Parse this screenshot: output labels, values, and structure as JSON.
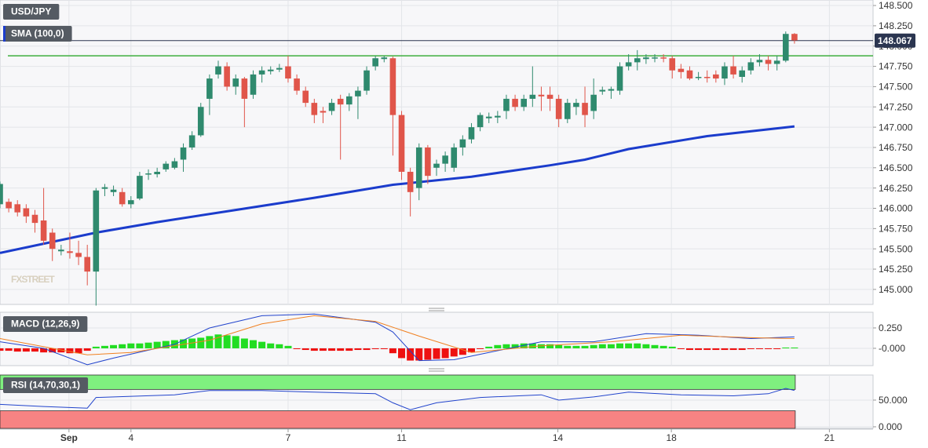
{
  "chart_data": [
    {
      "type": "candlestick",
      "title": "USD/JPY",
      "watermark": "FXSTREET",
      "xlim": [
        0,
        100
      ],
      "xticks": [
        {
          "value": 7.9,
          "label": "Sep"
        },
        {
          "value": 15,
          "label": "4"
        },
        {
          "value": 33,
          "label": "7"
        },
        {
          "value": 46,
          "label": "11"
        },
        {
          "value": 63.9,
          "label": "14"
        },
        {
          "value": 76.9,
          "label": "18"
        },
        {
          "value": 95,
          "label": "21"
        }
      ],
      "ylim": [
        144.815,
        148.568
      ],
      "yticks": [
        {
          "value": 145,
          "label": "145.000"
        },
        {
          "value": 145.25,
          "label": "145.250"
        },
        {
          "value": 145.5,
          "label": "145.500"
        },
        {
          "value": 145.75,
          "label": "145.750"
        },
        {
          "value": 146,
          "label": "146.000"
        },
        {
          "value": 146.25,
          "label": "146.250"
        },
        {
          "value": 146.5,
          "label": "146.500"
        },
        {
          "value": 146.75,
          "label": "146.750"
        },
        {
          "value": 147,
          "label": "147.000"
        },
        {
          "value": 147.25,
          "label": "147.250"
        },
        {
          "value": 147.5,
          "label": "147.500"
        },
        {
          "value": 147.75,
          "label": "147.750"
        },
        {
          "value": 148,
          "label": "148.000"
        },
        {
          "value": 148.25,
          "label": "148.250"
        },
        {
          "value": 148.5,
          "label": "148.500"
        }
      ],
      "up_color": "#2f8a6e",
      "down_color": "#e0554a",
      "open": [
        146.05,
        146.08,
        146.05,
        146.0,
        145.92,
        145.85,
        145.7,
        145.47,
        145.47,
        145.45,
        145.4,
        145.22,
        146.24,
        146.2,
        146.2,
        146.05,
        146.12,
        146.42,
        146.42,
        146.48,
        146.5,
        146.6,
        146.75,
        146.9,
        147.35,
        147.65,
        147.75,
        147.5,
        147.6,
        147.4,
        147.65,
        147.69,
        147.71,
        147.75,
        147.6,
        147.45,
        147.3,
        147.2,
        147.2,
        147.35,
        147.28,
        147.38,
        147.45,
        147.75,
        147.84,
        147.85,
        147.15,
        146.45,
        146.25,
        146.75,
        146.5,
        146.55,
        146.5,
        146.75,
        146.85,
        147.0,
        147.11,
        147.12,
        147.2,
        147.35,
        147.25,
        147.35,
        147.4,
        147.4,
        147.35,
        147.1,
        147.25,
        147.3,
        147.2,
        147.44,
        147.45,
        147.45,
        147.75,
        147.8,
        147.84,
        147.85,
        147.86,
        147.85,
        147.72,
        147.7,
        147.61,
        147.62,
        147.65,
        147.6,
        147.75,
        147.62,
        147.7,
        147.8,
        147.83,
        147.78,
        147.82,
        148.15
      ],
      "high": [
        146.33,
        146.12,
        146.1,
        146.05,
        145.98,
        146.25,
        145.75,
        145.55,
        145.7,
        145.6,
        145.55,
        146.25,
        146.3,
        146.28,
        146.25,
        146.15,
        146.45,
        146.48,
        146.5,
        146.58,
        146.62,
        146.8,
        146.95,
        147.3,
        147.65,
        147.82,
        147.8,
        147.65,
        147.62,
        147.7,
        147.75,
        147.75,
        147.78,
        147.88,
        147.65,
        147.5,
        147.35,
        147.25,
        147.35,
        147.4,
        147.42,
        147.5,
        147.75,
        147.88,
        147.88,
        147.87,
        147.2,
        146.5,
        146.8,
        146.78,
        146.6,
        146.7,
        146.8,
        146.9,
        147.05,
        147.18,
        147.18,
        147.2,
        147.4,
        147.4,
        147.4,
        147.75,
        147.5,
        147.5,
        147.4,
        147.35,
        147.35,
        147.5,
        147.6,
        147.5,
        147.5,
        147.8,
        147.9,
        147.95,
        147.9,
        147.9,
        147.9,
        147.88,
        147.78,
        147.75,
        147.68,
        147.7,
        147.7,
        147.8,
        147.88,
        147.75,
        147.85,
        147.9,
        147.88,
        147.88,
        148.18,
        148.16
      ],
      "low": [
        146.0,
        145.95,
        145.9,
        145.82,
        145.7,
        145.55,
        145.35,
        145.42,
        145.38,
        145.3,
        145.05,
        144.8,
        146.15,
        146.15,
        146.02,
        146.0,
        146.1,
        146.35,
        146.38,
        146.45,
        146.48,
        146.45,
        146.72,
        146.88,
        147.15,
        147.6,
        147.45,
        147.4,
        147.0,
        147.35,
        147.55,
        147.65,
        147.68,
        147.55,
        147.4,
        147.25,
        147.05,
        147.05,
        147.15,
        146.6,
        147.2,
        147.1,
        147.4,
        147.7,
        147.8,
        146.65,
        146.35,
        145.9,
        146.1,
        146.3,
        146.4,
        146.45,
        146.45,
        146.65,
        146.8,
        146.95,
        147.05,
        147.05,
        147.1,
        147.2,
        147.2,
        147.25,
        147.2,
        147.2,
        147.0,
        147.05,
        147.15,
        147.0,
        147.1,
        147.4,
        147.35,
        147.4,
        147.7,
        147.7,
        147.78,
        147.8,
        147.8,
        147.6,
        147.6,
        147.58,
        147.58,
        147.55,
        147.55,
        147.52,
        147.6,
        147.55,
        147.65,
        147.75,
        147.7,
        147.7,
        147.8,
        148.03
      ],
      "close": [
        146.3,
        146.0,
        145.95,
        145.9,
        145.82,
        145.6,
        145.5,
        145.49,
        145.45,
        145.4,
        145.22,
        146.22,
        146.26,
        146.23,
        146.05,
        146.1,
        146.4,
        146.43,
        146.45,
        146.55,
        146.58,
        146.75,
        146.9,
        147.25,
        147.6,
        147.75,
        147.5,
        147.6,
        147.35,
        147.65,
        147.7,
        147.71,
        147.73,
        147.6,
        147.45,
        147.3,
        147.15,
        147.18,
        147.3,
        147.28,
        147.38,
        147.45,
        147.7,
        147.85,
        147.86,
        147.15,
        146.45,
        146.2,
        146.75,
        146.4,
        146.55,
        146.65,
        146.75,
        146.85,
        147.0,
        147.15,
        147.13,
        147.14,
        147.35,
        147.25,
        147.35,
        147.4,
        147.38,
        147.35,
        147.1,
        147.3,
        147.3,
        147.15,
        147.4,
        147.46,
        147.47,
        147.75,
        147.8,
        147.85,
        147.86,
        147.86,
        147.85,
        147.7,
        147.68,
        147.6,
        147.62,
        147.61,
        147.6,
        147.75,
        147.65,
        147.7,
        147.8,
        147.83,
        147.78,
        147.82,
        148.15,
        148.07
      ],
      "overlays": [
        {
          "name": "SMA (100,0)",
          "color": "#1b3ccc",
          "x": [
            0,
            11,
            18,
            27,
            36,
            45,
            54,
            63,
            67,
            72,
            81,
            91
          ],
          "values": [
            145.45,
            145.7,
            145.83,
            145.98,
            146.13,
            146.29,
            146.39,
            146.53,
            146.6,
            146.73,
            146.89,
            147.01
          ]
        }
      ],
      "hlines": [
        {
          "value": 147.88,
          "color": "#3fae3f"
        }
      ],
      "last_price": 148.067
    },
    {
      "type": "macd",
      "title": "MACD (12,26,9)",
      "ylim": [
        -0.212,
        0.442
      ],
      "yticks": [
        {
          "value": 0,
          "label": "-0.000"
        },
        {
          "value": 0.25,
          "label": "0.250"
        }
      ],
      "histogram": {
        "up_color": "#22dd22",
        "down_color": "#ee1111",
        "values": [
          -0.03,
          -0.03,
          -0.04,
          -0.04,
          -0.04,
          -0.05,
          -0.05,
          -0.05,
          -0.06,
          -0.06,
          -0.03,
          0.02,
          0.03,
          0.04,
          0.05,
          0.06,
          0.06,
          0.07,
          0.08,
          0.09,
          0.1,
          0.11,
          0.12,
          0.13,
          0.15,
          0.17,
          0.16,
          0.15,
          0.12,
          0.1,
          0.08,
          0.06,
          0.05,
          0.03,
          -0.01,
          -0.02,
          -0.03,
          -0.03,
          -0.03,
          -0.03,
          -0.03,
          -0.02,
          -0.02,
          -0.01,
          -0.01,
          -0.06,
          -0.12,
          -0.15,
          -0.15,
          -0.14,
          -0.13,
          -0.12,
          -0.1,
          -0.08,
          -0.05,
          -0.01,
          0.02,
          0.04,
          0.05,
          0.05,
          0.06,
          0.06,
          0.05,
          0.05,
          0.04,
          0.03,
          0.03,
          0.03,
          0.04,
          0.05,
          0.05,
          0.06,
          0.06,
          0.06,
          0.05,
          0.04,
          0.03,
          0.02,
          -0.01,
          -0.02,
          -0.02,
          -0.02,
          -0.02,
          -0.02,
          -0.02,
          -0.02,
          -0.01,
          -0.01,
          -0.01,
          -0.01,
          0.01,
          0.01
        ]
      },
      "series": [
        {
          "color": "#2244cc",
          "x": [
            0,
            5,
            10,
            13,
            20,
            24,
            30,
            36,
            43,
            45,
            48,
            52,
            56,
            62,
            68,
            74,
            80,
            86,
            91
          ],
          "values": [
            0.08,
            0.0,
            -0.2,
            -0.12,
            0.05,
            0.25,
            0.4,
            0.42,
            0.32,
            0.2,
            -0.15,
            -0.14,
            -0.05,
            0.08,
            0.08,
            0.18,
            0.16,
            0.12,
            0.14
          ]
        },
        {
          "color": "#f08020",
          "x": [
            0,
            10,
            15,
            24,
            30,
            36,
            43,
            48,
            54,
            62,
            70,
            78,
            86,
            91
          ],
          "values": [
            0.12,
            -0.08,
            -0.05,
            0.1,
            0.3,
            0.4,
            0.33,
            0.15,
            -0.05,
            0.03,
            0.08,
            0.16,
            0.13,
            0.12
          ]
        }
      ]
    },
    {
      "type": "rsi",
      "title": "RSI (14,70,30,1)",
      "ylim": [
        -3,
        97
      ],
      "yticks": [
        {
          "value": 0,
          "label": "0.000"
        },
        {
          "value": 50,
          "label": "50.000"
        }
      ],
      "bands": [
        {
          "range": [
            70,
            97
          ],
          "color": "#7ff07f"
        },
        {
          "range": [
            -3,
            30
          ],
          "color": "#f78383"
        }
      ],
      "series": [
        {
          "color": "#2244cc",
          "x": [
            0,
            5,
            10,
            11,
            20,
            24,
            30,
            36,
            43,
            45,
            47,
            50,
            55,
            62,
            64,
            68,
            72,
            78,
            84,
            88,
            90,
            91
          ],
          "values": [
            42,
            38,
            35,
            55,
            60,
            68,
            68,
            65,
            62,
            45,
            32,
            45,
            55,
            60,
            50,
            56,
            65,
            60,
            58,
            62,
            72,
            68
          ]
        }
      ]
    }
  ]
}
